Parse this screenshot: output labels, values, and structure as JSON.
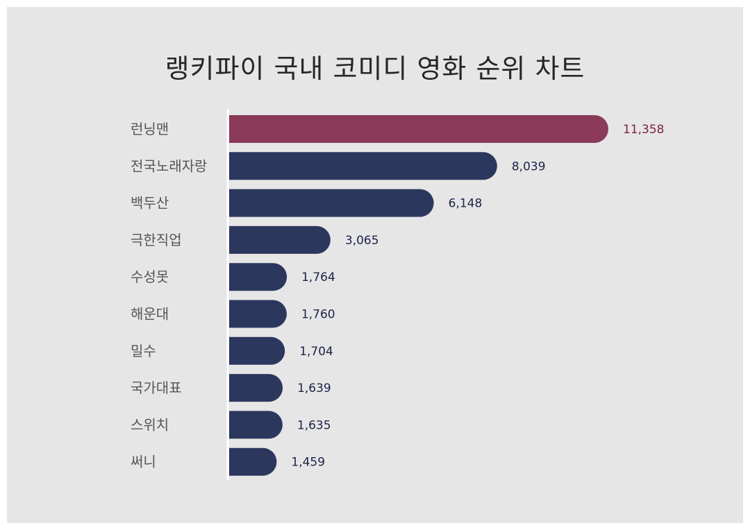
{
  "title": "랭키파이 국내 코미디 영화 순위 차트",
  "colors": {
    "background": "#e6e6e6",
    "highlight_bar": "#8b3a59",
    "bar": "#2c375e",
    "highlight_label": "#7a2443",
    "label": "#1c2248",
    "axis": "#ffffff"
  },
  "chart_data": {
    "type": "bar",
    "orientation": "horizontal",
    "title": "랭키파이 국내 코미디 영화 순위 차트",
    "categories": [
      "런닝맨",
      "전국노래자랑",
      "백두산",
      "극한직업",
      "수성못",
      "해운대",
      "밀수",
      "국가대표",
      "스위치",
      "써니"
    ],
    "values": [
      11358,
      8039,
      6148,
      3065,
      1764,
      1760,
      1704,
      1639,
      1635,
      1459
    ],
    "value_labels": [
      "11,358",
      "8,039",
      "6,148",
      "3,065",
      "1,764",
      "1,760",
      "1,704",
      "1,639",
      "1,635",
      "1,459"
    ],
    "highlight_index": 0,
    "xlim": [
      0,
      11358
    ],
    "grid": false,
    "legend": "none"
  }
}
